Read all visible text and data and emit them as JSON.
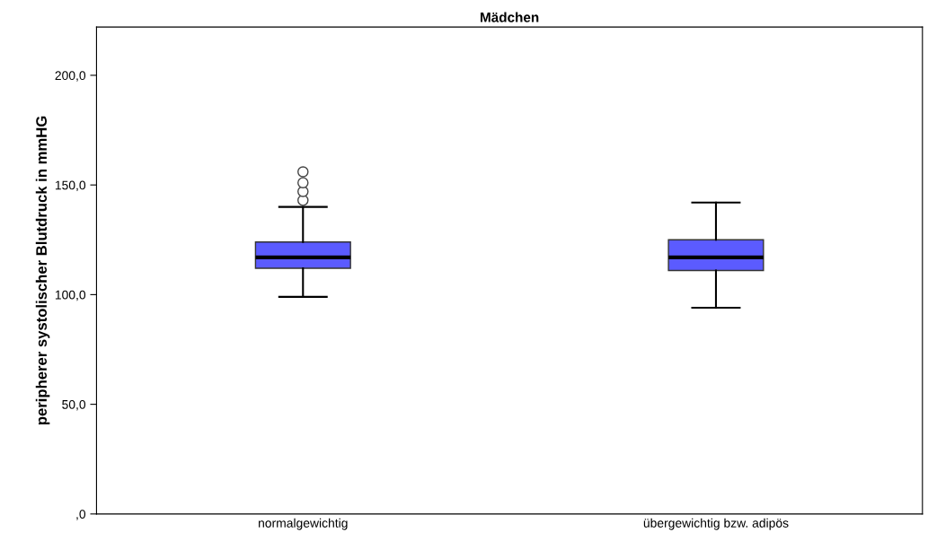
{
  "chart_data": {
    "type": "box",
    "title": "Mädchen",
    "ylabel": "peripherer systolischer Blutdruck in mmHG",
    "categories": [
      "normalgewichtig",
      "übergewichtig bzw. adipös"
    ],
    "color": "#5b5bff",
    "boxes": [
      {
        "low": 99,
        "q1": 112,
        "median": 117,
        "q3": 124,
        "high": 140,
        "outliers": [
          143,
          147,
          151,
          156
        ]
      },
      {
        "low": 94,
        "q1": 111,
        "median": 117,
        "q3": 125,
        "high": 142
      }
    ],
    "ylim": [
      0,
      222
    ],
    "yticks": [
      {
        "value": 0,
        "label": ",0"
      },
      {
        "value": 50,
        "label": "50,0"
      },
      {
        "value": 100,
        "label": "100,0"
      },
      {
        "value": 150,
        "label": "150,0"
      },
      {
        "value": 200,
        "label": "200,0"
      }
    ],
    "grid": false
  }
}
